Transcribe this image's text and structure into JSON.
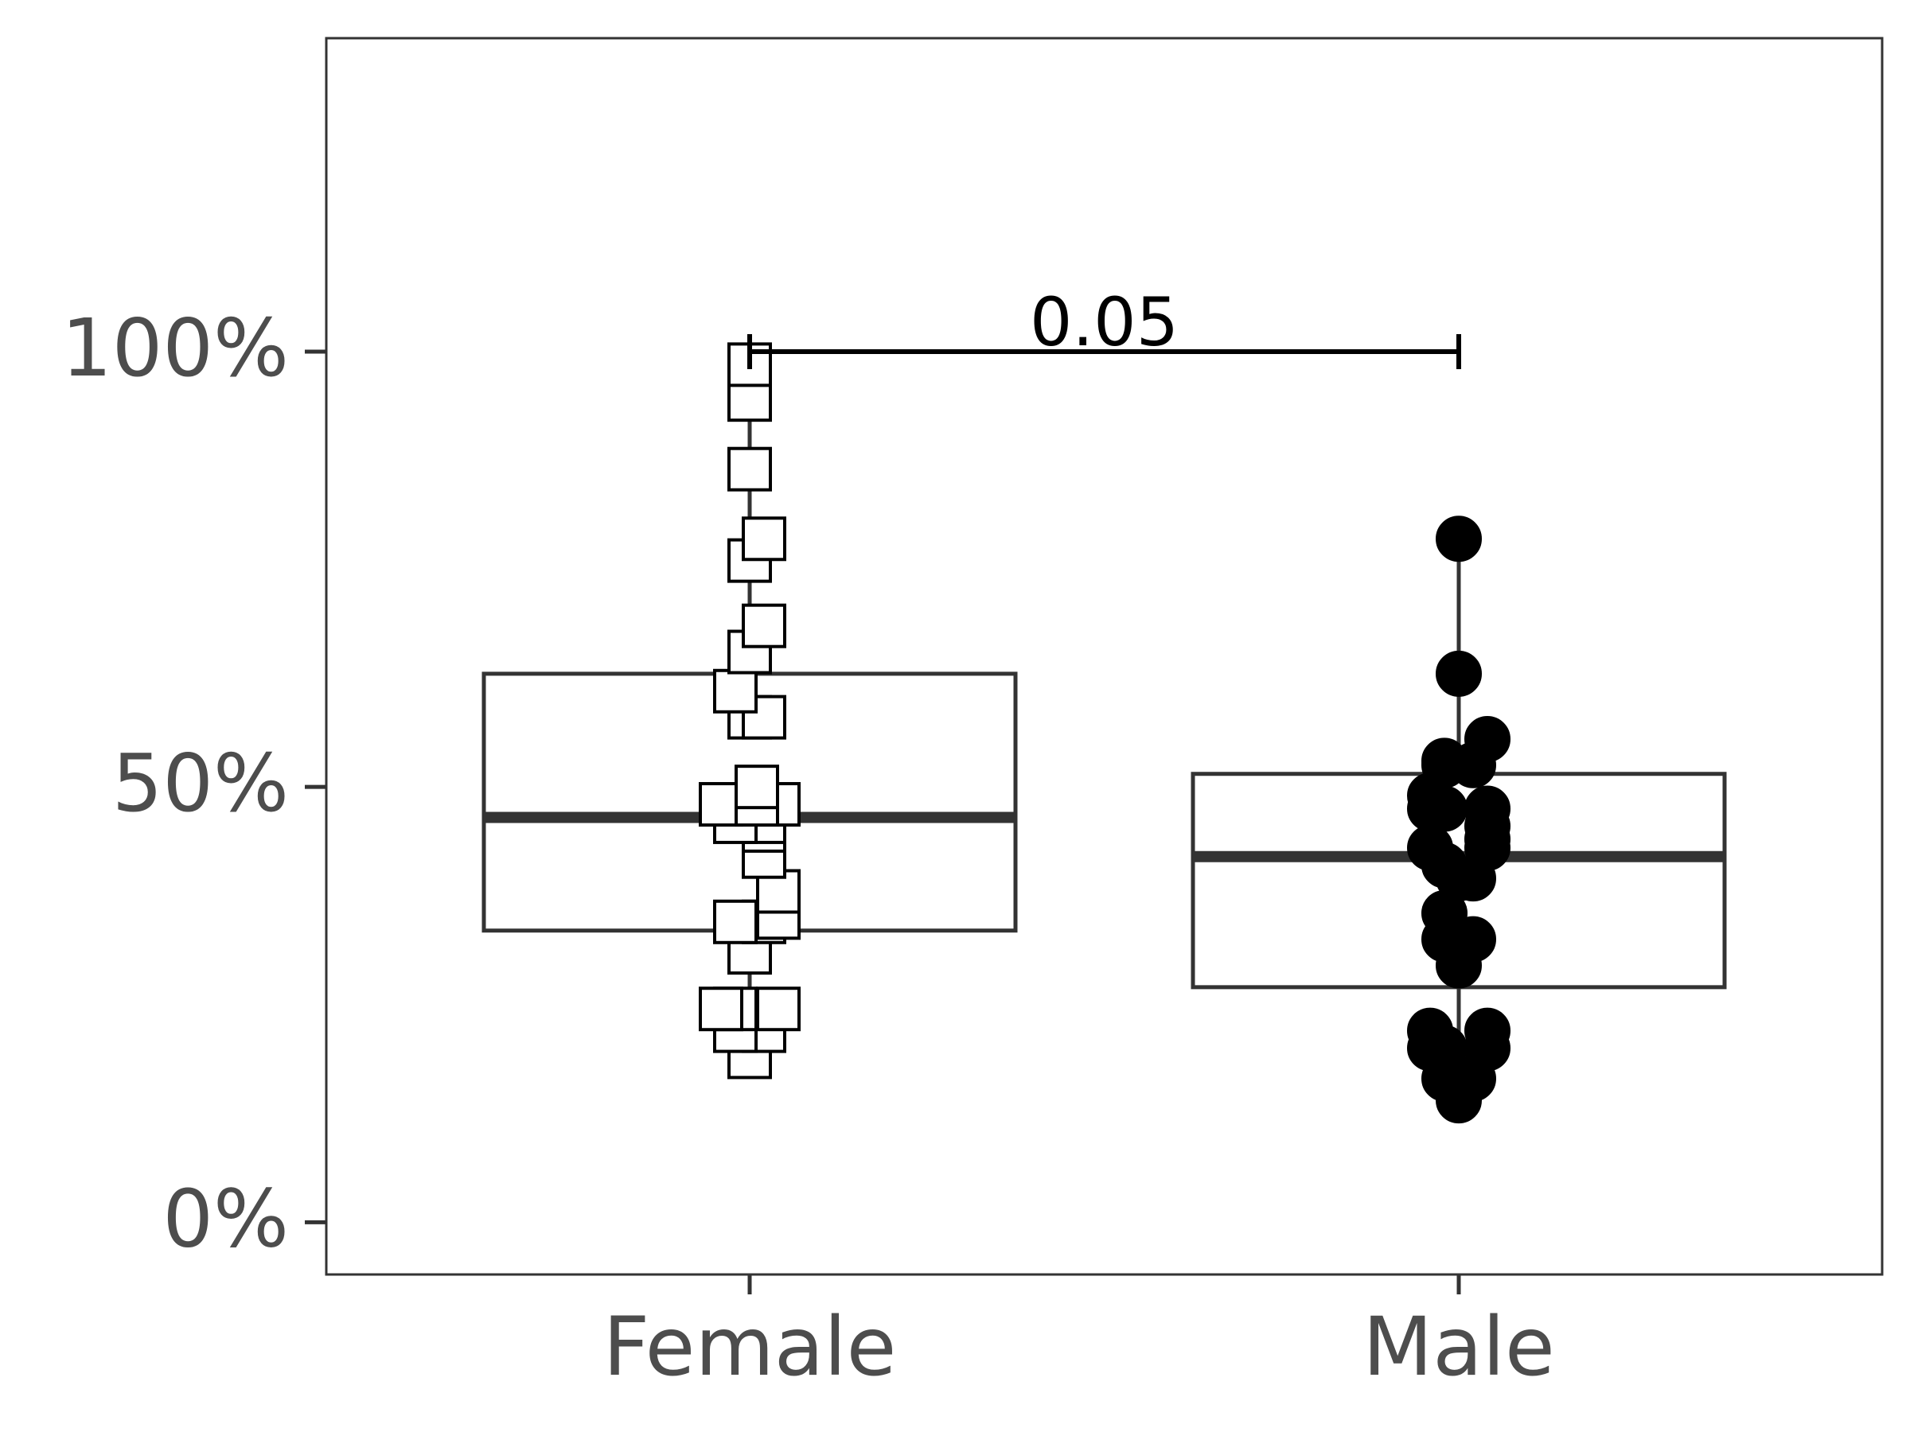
{
  "chart_data": {
    "type": "box",
    "title": "",
    "xlabel": "",
    "ylabel": "",
    "ylim": [
      -0.06,
      1.36
    ],
    "y_ticks": [
      {
        "value": 0,
        "label": "0%"
      },
      {
        "value": 0.5,
        "label": "50%"
      },
      {
        "value": 1,
        "label": "100%"
      }
    ],
    "categories": [
      "Female",
      "Male"
    ],
    "grid": false,
    "legend": "none",
    "series": [
      {
        "category": "Female",
        "marker": "open-square",
        "box": {
          "q1": 0.335,
          "median": 0.465,
          "q3": 0.63,
          "whisker_low": 0.185,
          "whisker_high": 0.985
        },
        "points": [
          0.985,
          0.945,
          0.865,
          0.785,
          0.76,
          0.685,
          0.655,
          0.61,
          0.58,
          0.58,
          0.5,
          0.48,
          0.48,
          0.48,
          0.46,
          0.46,
          0.45,
          0.42,
          0.38,
          0.35,
          0.345,
          0.345,
          0.31,
          0.245,
          0.245,
          0.245,
          0.22,
          0.22,
          0.19
        ]
      },
      {
        "category": "Male",
        "marker": "filled-circle",
        "box": {
          "q1": 0.27,
          "median": 0.42,
          "q3": 0.515,
          "whisker_low": 0.14,
          "whisker_high": 0.785
        },
        "points": [
          0.785,
          0.63,
          0.555,
          0.53,
          0.525,
          0.525,
          0.49,
          0.475,
          0.475,
          0.475,
          0.455,
          0.44,
          0.43,
          0.43,
          0.41,
          0.395,
          0.395,
          0.355,
          0.325,
          0.325,
          0.295,
          0.22,
          0.22,
          0.2,
          0.2,
          0.2,
          0.165,
          0.165,
          0.14
        ]
      }
    ],
    "annotations": [
      {
        "type": "significance-bracket",
        "from": "Female",
        "to": "Male",
        "y": 1.0,
        "label": "0.05"
      }
    ],
    "colors": {
      "box_stroke": "#333333",
      "axis_text": "#4d4d4d",
      "point": "#000000"
    }
  }
}
